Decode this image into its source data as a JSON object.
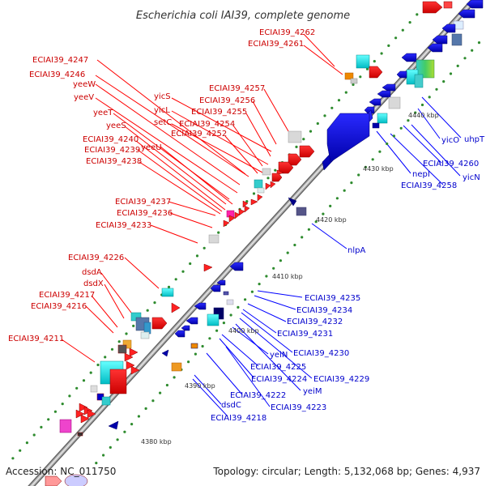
{
  "title": "Escherichia coli IAI39, complete genome",
  "accession": "Accession: NC_011750",
  "summary": "Topology: circular; Length: 5,132,068 bp; Genes: 4,937",
  "colors": {
    "upper_strand_label": "#cc0000",
    "lower_strand_label": "#0000cc",
    "backbone": "#9a9a9a",
    "tick_dot": "#2e8b2e"
  },
  "kbp_ticks": [
    "4380 kbp",
    "4390 kbp",
    "4400 kbp",
    "4410 kbp",
    "4420 kbp",
    "4430 kbp",
    "4440 kbp"
  ],
  "upper_labels": [
    "ECIAI39_4262",
    "ECIAI39_4261",
    "ECIAI39_4247",
    "ECIAI39_4246",
    "yeeW",
    "yeeV",
    "ECIAI39_4257",
    "yicS",
    "ECIAI39_4256",
    "yicL",
    "ECIAI39_4255",
    "yeeT",
    "setC",
    "ECIAI39_4254",
    "yeeS",
    "ECIAI39_4252",
    "ECIAI39_4240",
    "ECIAI39_4239",
    "yeeU",
    "ECIAI39_4238",
    "ECIAI39_4237",
    "ECIAI39_4236",
    "ECIAI39_4233",
    "ECIAI39_4226",
    "dsdA",
    "dsdX",
    "ECIAI39_4217",
    "ECIAI39_4216",
    "ECIAI39_4211"
  ],
  "lower_labels": [
    "uhpT",
    "yicO",
    "ECIAI39_4260",
    "yicN",
    "nepI",
    "ECIAI39_4258",
    "nlpA",
    "ECIAI39_4235",
    "ECIAI39_4234",
    "ECIAI39_4232",
    "ECIAI39_4231",
    "ECIAI39_4230",
    "yeiN",
    "ECIAI39_4225",
    "ECIAI39_4229",
    "ECIAI39_4224",
    "yeiM",
    "ECIAI39_4222",
    "ECIAI39_4223",
    "dsdC",
    "ECIAI39_4218"
  ]
}
